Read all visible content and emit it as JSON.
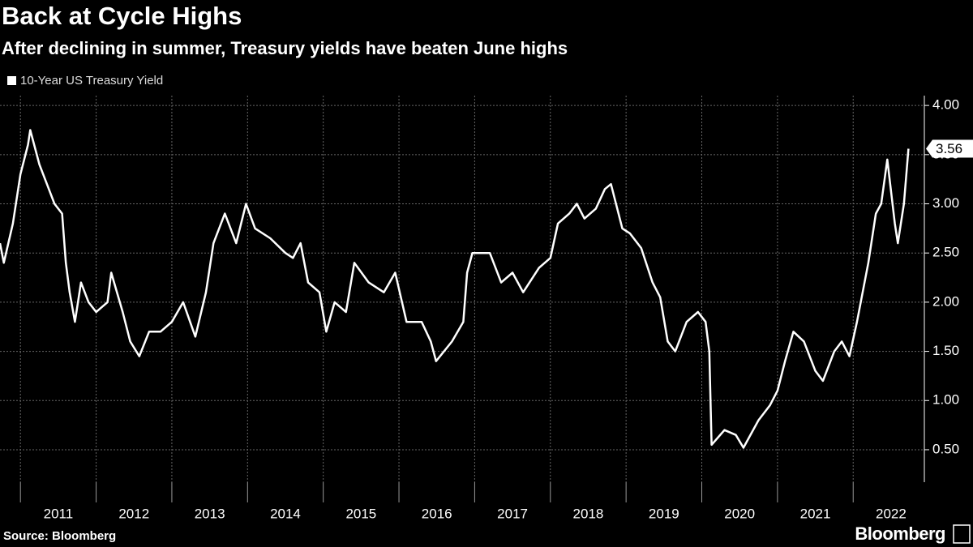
{
  "chart_data": {
    "type": "line",
    "title": "Back at Cycle Highs",
    "subtitle": "After declining in summer, Treasury yields have beaten June highs",
    "source": "Source: Bloomberg",
    "brand": "Bloomberg",
    "x": [
      2010.73,
      2010.78,
      2010.9,
      2011.0,
      2011.1,
      2011.13,
      2011.25,
      2011.35,
      2011.45,
      2011.55,
      2011.6,
      2011.65,
      2011.72,
      2011.8,
      2011.9,
      2012.0,
      2012.15,
      2012.2,
      2012.35,
      2012.45,
      2012.57,
      2012.7,
      2012.85,
      2013.0,
      2013.15,
      2013.31,
      2013.45,
      2013.55,
      2013.65,
      2013.7,
      2013.85,
      2013.98,
      2014.1,
      2014.3,
      2014.5,
      2014.6,
      2014.7,
      2014.8,
      2014.95,
      2015.04,
      2015.15,
      2015.3,
      2015.41,
      2015.6,
      2015.8,
      2015.95,
      2016.1,
      2016.3,
      2016.42,
      2016.49,
      2016.7,
      2016.85,
      2016.9,
      2016.97,
      2017.2,
      2017.35,
      2017.5,
      2017.64,
      2017.85,
      2018.0,
      2018.1,
      2018.25,
      2018.35,
      2018.45,
      2018.6,
      2018.72,
      2018.8,
      2018.95,
      2019.05,
      2019.2,
      2019.35,
      2019.45,
      2019.55,
      2019.65,
      2019.8,
      2019.95,
      2020.05,
      2020.1,
      2020.13,
      2020.3,
      2020.45,
      2020.55,
      2020.75,
      2020.9,
      2021.0,
      2021.1,
      2021.21,
      2021.35,
      2021.5,
      2021.6,
      2021.75,
      2021.85,
      2021.95,
      2022.05,
      2022.2,
      2022.3,
      2022.37,
      2022.45,
      2022.55,
      2022.59,
      2022.67,
      2022.73
    ],
    "series": [
      {
        "name": "10-Year US Treasury Yield",
        "color": "#ffffff",
        "values": [
          2.6,
          2.4,
          2.8,
          3.3,
          3.6,
          3.75,
          3.4,
          3.2,
          3.0,
          2.9,
          2.4,
          2.1,
          1.8,
          2.2,
          2.0,
          1.9,
          2.0,
          2.3,
          1.9,
          1.6,
          1.45,
          1.7,
          1.7,
          1.8,
          2.0,
          1.65,
          2.1,
          2.6,
          2.8,
          2.9,
          2.6,
          3.0,
          2.75,
          2.65,
          2.5,
          2.45,
          2.6,
          2.2,
          2.1,
          1.7,
          2.0,
          1.9,
          2.4,
          2.2,
          2.1,
          2.3,
          1.8,
          1.8,
          1.6,
          1.4,
          1.6,
          1.8,
          2.3,
          2.5,
          2.5,
          2.2,
          2.3,
          2.1,
          2.35,
          2.45,
          2.8,
          2.9,
          3.0,
          2.85,
          2.95,
          3.15,
          3.2,
          2.75,
          2.7,
          2.55,
          2.2,
          2.05,
          1.6,
          1.5,
          1.8,
          1.9,
          1.8,
          1.5,
          0.55,
          0.7,
          0.65,
          0.52,
          0.8,
          0.95,
          1.1,
          1.4,
          1.7,
          1.6,
          1.3,
          1.2,
          1.5,
          1.6,
          1.45,
          1.8,
          2.4,
          2.9,
          3.0,
          3.45,
          2.8,
          2.6,
          3.0,
          3.56
        ]
      }
    ],
    "xlim": [
      2010.73,
      2022.94
    ],
    "xticks": [
      2011,
      2012,
      2013,
      2014,
      2015,
      2016,
      2017,
      2018,
      2019,
      2020,
      2021,
      2022
    ],
    "ylim": [
      0.17,
      4.1
    ],
    "yticks": [
      {
        "value": 0.5,
        "label": "0.50"
      },
      {
        "value": 1,
        "label": "1.00"
      },
      {
        "value": 1.5,
        "label": "1.50"
      },
      {
        "value": 2,
        "label": "2.00"
      },
      {
        "value": 2.5,
        "label": "2.50"
      },
      {
        "value": 3,
        "label": "3.00"
      },
      {
        "value": 3.5,
        "label": "3.50"
      },
      {
        "value": 4,
        "label": "4.00"
      }
    ],
    "grid": true
  }
}
